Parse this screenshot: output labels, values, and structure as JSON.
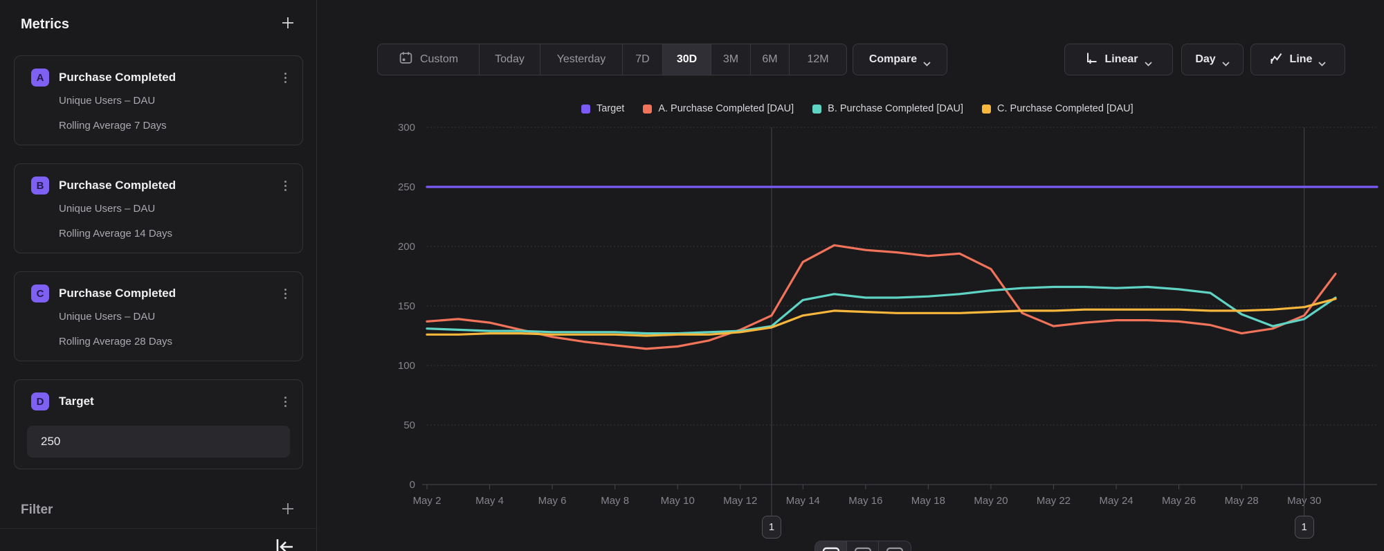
{
  "sidebar": {
    "title": "Metrics",
    "metrics": [
      {
        "badge": "A",
        "title": "Purchase Completed",
        "line1": "Unique Users – DAU",
        "line2": "Rolling Average 7 Days"
      },
      {
        "badge": "B",
        "title": "Purchase Completed",
        "line1": "Unique Users – DAU",
        "line2": "Rolling Average 14 Days"
      },
      {
        "badge": "C",
        "title": "Purchase Completed",
        "line1": "Unique Users – DAU",
        "line2": "Rolling Average 28 Days"
      },
      {
        "badge": "D",
        "title": "Target",
        "input_value": "250"
      }
    ],
    "filter_label": "Filter"
  },
  "toolbar": {
    "ranges": [
      {
        "label": "Custom",
        "selected": false
      },
      {
        "label": "Today",
        "selected": false
      },
      {
        "label": "Yesterday",
        "selected": false
      },
      {
        "label": "7D",
        "selected": false
      },
      {
        "label": "30D",
        "selected": true
      },
      {
        "label": "3M",
        "selected": false
      },
      {
        "label": "6M",
        "selected": false
      },
      {
        "label": "12M",
        "selected": false
      }
    ],
    "compare_label": "Compare",
    "scale_label": "Linear",
    "interval_label": "Day",
    "chart_type_label": "Line"
  },
  "chart_data": {
    "type": "line",
    "title": "",
    "xlabel": "",
    "ylabel": "",
    "ylim": [
      0,
      300
    ],
    "grid": true,
    "legend_position": "top-center",
    "y_ticks": [
      0,
      50,
      100,
      150,
      200,
      250,
      300
    ],
    "x_tick_labels": [
      "May 2",
      "May 4",
      "May 6",
      "May 8",
      "May 10",
      "May 12",
      "May 14",
      "May 16",
      "May 18",
      "May 20",
      "May 22",
      "May 24",
      "May 26",
      "May 28",
      "May 30"
    ],
    "series": [
      {
        "name": "Target",
        "color": "#7b5bf5",
        "full_width": true,
        "values": [
          250,
          250,
          250,
          250,
          250,
          250,
          250,
          250,
          250,
          250,
          250,
          250,
          250,
          250,
          250,
          250,
          250,
          250,
          250,
          250,
          250,
          250,
          250,
          250,
          250,
          250,
          250,
          250,
          250,
          250
        ]
      },
      {
        "name": "A. Purchase Completed [DAU]",
        "color": "#f0735a",
        "full_width": false,
        "values": [
          137,
          139,
          136,
          130,
          124,
          120,
          117,
          114,
          116,
          121,
          130,
          142,
          187,
          201,
          197,
          195,
          192,
          194,
          181,
          144,
          133,
          136,
          138,
          138,
          137,
          134,
          127,
          131,
          142,
          177
        ]
      },
      {
        "name": "B. Purchase Completed [DAU]",
        "color": "#5fd4c4",
        "full_width": false,
        "values": [
          131,
          130,
          129,
          129,
          128,
          128,
          128,
          127,
          127,
          128,
          129,
          133,
          155,
          160,
          157,
          157,
          158,
          160,
          163,
          165,
          166,
          166,
          165,
          166,
          164,
          161,
          143,
          133,
          139,
          157
        ]
      },
      {
        "name": "C. Purchase Completed [DAU]",
        "color": "#f6b73c",
        "full_width": false,
        "values": [
          126,
          126,
          127,
          127,
          126,
          126,
          126,
          125,
          126,
          126,
          128,
          132,
          142,
          146,
          145,
          144,
          144,
          144,
          145,
          146,
          146,
          147,
          147,
          147,
          147,
          146,
          146,
          147,
          149,
          156
        ]
      }
    ],
    "annotations": [
      {
        "label": "1",
        "point_index": 11
      },
      {
        "label": "1",
        "point_index": 28
      }
    ]
  }
}
